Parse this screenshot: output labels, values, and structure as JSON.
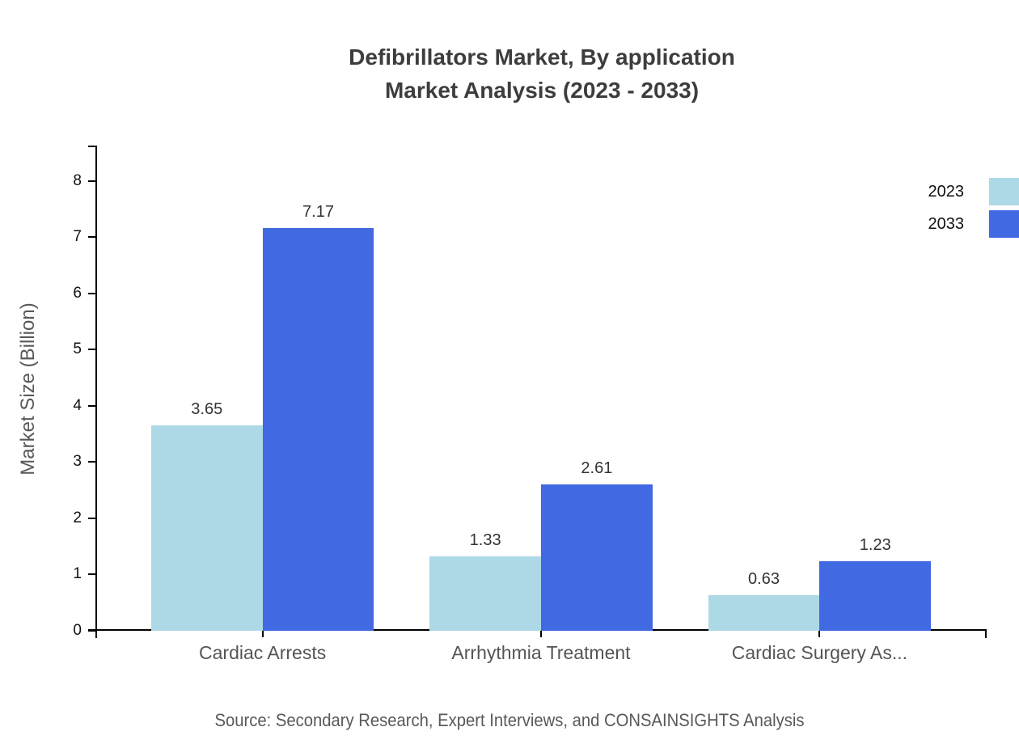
{
  "title": {
    "line1": "Defibrillators Market, By application",
    "line2": "Market Analysis (2023 - 2033)"
  },
  "y_axis": {
    "label": "Market Size (Billion)",
    "ticks": [
      0,
      1,
      2,
      3,
      4,
      5,
      6,
      7,
      8
    ]
  },
  "source": "Source: Secondary Research, Expert Interviews, and CONSAINSIGHTS Analysis",
  "chart_data": {
    "type": "bar",
    "title": "Defibrillators Market, By application Market Analysis (2023 - 2033)",
    "categories": [
      "Cardiac Arrests",
      "Arrhythmia Treatment",
      "Cardiac Surgery As..."
    ],
    "series": [
      {
        "name": "2023",
        "color": "#ADD8E6",
        "values": [
          3.65,
          1.33,
          0.63
        ]
      },
      {
        "name": "2033",
        "color": "#4169E1",
        "values": [
          7.17,
          2.61,
          1.23
        ]
      }
    ],
    "value_labels": [
      [
        "3.65",
        "1.33",
        "0.63"
      ],
      [
        "7.17",
        "2.61",
        "1.23"
      ]
    ],
    "xlabel": "",
    "ylabel": "Market Size (Billion)",
    "ylim": [
      0,
      8.63
    ],
    "ytick_step": 1,
    "grid": false,
    "legend_position": "top-right"
  }
}
